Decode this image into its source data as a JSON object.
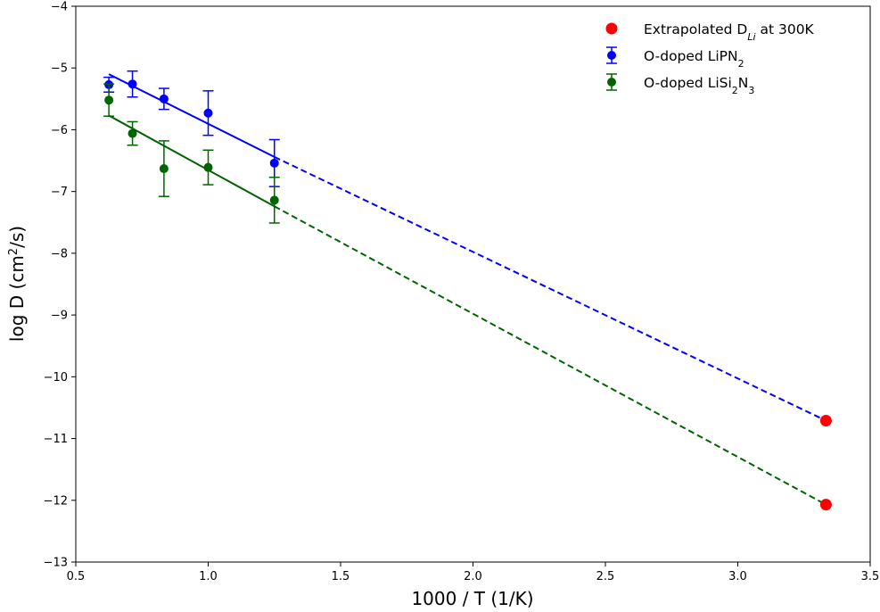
{
  "chart_data": {
    "type": "scatter",
    "xlabel": "1000 / T (1/K)",
    "ylabel_parts": [
      "log D (cm",
      "2",
      "/s)"
    ],
    "xlim": [
      0.5,
      3.5
    ],
    "ylim": [
      -13,
      -4
    ],
    "xticks": [
      0.5,
      1.0,
      1.5,
      2.0,
      2.5,
      3.0,
      3.5
    ],
    "xtick_labels": [
      "0.5",
      "1.0",
      "1.5",
      "2.0",
      "2.5",
      "3.0",
      "3.5"
    ],
    "yticks": [
      -13,
      -12,
      -11,
      -10,
      -9,
      -8,
      -7,
      -6,
      -5,
      -4
    ],
    "ytick_labels": [
      "−13",
      "−12",
      "−11",
      "−10",
      "−9",
      "−8",
      "−7",
      "−6",
      "−5",
      "−4"
    ],
    "grid": false,
    "legend_position": "top-right",
    "series": [
      {
        "key": "lipn2",
        "legend_parts": [
          "O-doped LiPN",
          "2"
        ],
        "color": "#0000ff",
        "x": [
          0.625,
          0.714,
          0.833,
          1.0,
          1.25
        ],
        "y": [
          -5.27,
          -5.26,
          -5.5,
          -5.73,
          -6.54
        ],
        "yerr": [
          0.12,
          0.21,
          0.17,
          0.36,
          0.38
        ],
        "fit": {
          "x_start": 0.625,
          "x_end": 1.25,
          "y_start": -5.1,
          "y_end": -6.44
        },
        "extrapolation": {
          "x_start": 1.25,
          "x_end": 3.333,
          "y_start": -6.44,
          "y_end": -10.71
        }
      },
      {
        "key": "lisi2n3",
        "legend_parts": [
          "O-doped LiSi",
          "2",
          "N",
          "3"
        ],
        "color": "#006400",
        "x": [
          0.625,
          0.714,
          0.833,
          1.0,
          1.25
        ],
        "y": [
          -5.52,
          -6.06,
          -6.63,
          -6.61,
          -7.14
        ],
        "yerr": [
          0.26,
          0.19,
          0.45,
          0.28,
          0.37
        ],
        "fit": {
          "x_start": 0.625,
          "x_end": 1.25,
          "y_start": -5.77,
          "y_end": -7.24
        },
        "extrapolation": {
          "x_start": 1.25,
          "x_end": 3.333,
          "y_start": -7.24,
          "y_end": -12.07
        }
      }
    ],
    "extrapolated": {
      "legend_parts": [
        "Extrapolated D",
        "Li",
        " at 300K"
      ],
      "color": "#ff0000",
      "x": [
        3.333,
        3.333
      ],
      "y": [
        -10.71,
        -12.07
      ]
    }
  }
}
